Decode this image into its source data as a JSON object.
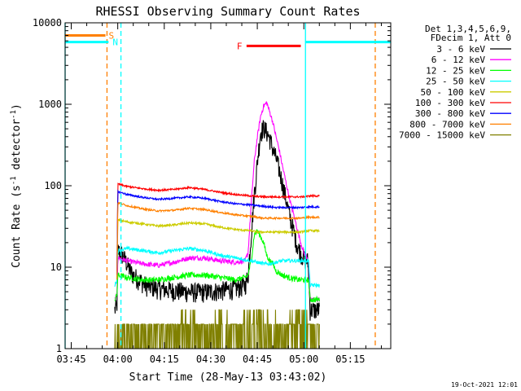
{
  "chart_data": {
    "type": "line",
    "title": "RHESSI Observing Summary Count Rates",
    "xlabel": "Start Time (28-May-13 03:43:02)",
    "ylabel": "Count Rate (s⁻¹ detector⁻¹)",
    "ylabel_parts": {
      "main": "Count Rate (s",
      "sup1": "-1",
      "mid": " detector",
      "sup2": "-1",
      "end": ")"
    },
    "yscale": "log",
    "x_unit": "minutes since 03:43:02",
    "xlim": [
      0,
      105
    ],
    "ylim": [
      1,
      10000
    ],
    "x_ticks": [
      {
        "label": "03:45",
        "value": 1.97
      },
      {
        "label": "04:00",
        "value": 16.97
      },
      {
        "label": "04:15",
        "value": 31.97
      },
      {
        "label": "04:30",
        "value": 46.97
      },
      {
        "label": "04:45",
        "value": 61.97
      },
      {
        "label": "05:00",
        "value": 76.97
      },
      {
        "label": "05:15",
        "value": 91.97
      }
    ],
    "y_ticks": [
      {
        "label": "1",
        "value": 1
      },
      {
        "label": "10",
        "value": 10
      },
      {
        "label": "100",
        "value": 100
      },
      {
        "label": "1000",
        "value": 1000
      },
      {
        "label": "10000",
        "value": 10000
      }
    ],
    "legend": {
      "header1": "Det 1,3,4,5,6,9,",
      "header2": "FDecim 1, Att 0",
      "placement": "right"
    },
    "series": [
      {
        "name": "3 - 6 keV",
        "color": "#000000",
        "noise": 0.28,
        "x": [
          16,
          16.7,
          17,
          18,
          19,
          20,
          21,
          22,
          24,
          26,
          30,
          35,
          40,
          45,
          50,
          55,
          58,
          59,
          60,
          61,
          61.5,
          62,
          62.5,
          63,
          64,
          65,
          66,
          67,
          68,
          69,
          70,
          71,
          72,
          73,
          74,
          75,
          76,
          77,
          78.2,
          78.5,
          79,
          80,
          81,
          82
        ],
        "y": [
          3,
          3.2,
          16,
          15,
          13,
          11,
          9,
          8,
          7,
          6,
          5.5,
          5.2,
          5,
          5,
          5.2,
          5.5,
          6,
          8,
          25,
          80,
          120,
          200,
          300,
          450,
          520,
          460,
          380,
          280,
          220,
          160,
          110,
          75,
          50,
          35,
          25,
          18,
          15,
          13,
          12,
          9,
          3,
          3,
          3,
          3
        ]
      },
      {
        "name": "6 - 12 keV",
        "color": "#ff00ff",
        "noise": 0.07,
        "x": [
          16,
          16.7,
          17,
          20,
          25,
          30,
          35,
          40,
          45,
          50,
          55,
          58,
          59,
          60,
          61,
          62,
          63,
          64,
          65,
          66,
          67,
          68,
          69,
          70,
          71,
          72,
          73,
          74,
          75,
          76,
          77,
          78.2,
          78.5,
          79,
          80,
          82
        ],
        "y": [
          4,
          4.5,
          13,
          12,
          11,
          10.5,
          11.5,
          13,
          13,
          12,
          11.5,
          12,
          15,
          60,
          200,
          400,
          700,
          950,
          1050,
          800,
          600,
          400,
          280,
          180,
          120,
          80,
          55,
          40,
          28,
          20,
          15,
          13,
          12,
          4,
          4,
          4
        ]
      },
      {
        "name": "12 - 25 keV",
        "color": "#00ff00",
        "noise": 0.08,
        "x": [
          16,
          16.7,
          17,
          20,
          25,
          30,
          35,
          40,
          45,
          50,
          55,
          58,
          59,
          60,
          61,
          62,
          63,
          64,
          65,
          66,
          67,
          68,
          70,
          72,
          75,
          78.2,
          78.5,
          79,
          80,
          82
        ],
        "y": [
          4,
          4.5,
          8,
          7.5,
          7,
          7,
          7.5,
          8,
          8,
          7.5,
          7,
          7.5,
          8,
          12,
          25,
          28,
          24,
          20,
          14,
          12,
          11,
          9,
          8,
          7.5,
          7,
          7,
          7,
          4,
          4,
          4
        ]
      },
      {
        "name": "25 - 50 keV",
        "color": "#00ffff",
        "noise": 0.05,
        "x": [
          16,
          16.7,
          17,
          20,
          25,
          30,
          35,
          40,
          45,
          50,
          55,
          60,
          62,
          64,
          66,
          68,
          70,
          72,
          74,
          76,
          78.2,
          78.5,
          79,
          80,
          82
        ],
        "y": [
          6,
          7,
          16,
          17,
          16,
          15,
          16,
          17,
          16,
          14,
          13,
          12,
          11.5,
          11,
          11,
          11.5,
          12,
          12,
          12,
          12,
          12,
          12,
          6,
          6,
          6
        ]
      },
      {
        "name": "50 - 100 keV",
        "color": "#cccc00",
        "noise": 0.03,
        "x": [
          16.7,
          17,
          20,
          25,
          30,
          35,
          40,
          45,
          50,
          55,
          60,
          62,
          64,
          66,
          68,
          70,
          72,
          74,
          76,
          78.2,
          78.5,
          80,
          82
        ],
        "y": [
          7,
          38,
          36,
          34,
          32,
          33,
          35,
          34,
          31,
          29,
          28,
          27,
          27,
          27,
          27,
          27,
          27,
          27,
          27,
          28,
          28,
          28,
          28
        ]
      },
      {
        "name": "100 - 300 keV",
        "color": "#ff0000",
        "noise": 0.025,
        "x": [
          16.7,
          17,
          20,
          25,
          30,
          35,
          40,
          45,
          50,
          55,
          60,
          62,
          64,
          66,
          68,
          70,
          72,
          74,
          76,
          78.2,
          78.5,
          80,
          82
        ],
        "y": [
          9,
          105,
          98,
          92,
          88,
          90,
          95,
          90,
          83,
          78,
          75,
          74,
          73,
          73,
          73,
          73,
          73,
          73,
          73,
          74,
          75,
          75,
          75
        ]
      },
      {
        "name": "300 - 800 keV",
        "color": "#0000ff",
        "noise": 0.025,
        "x": [
          16.7,
          17,
          20,
          25,
          30,
          35,
          40,
          45,
          50,
          55,
          60,
          62,
          64,
          66,
          68,
          70,
          72,
          74,
          76,
          78.2,
          78.5,
          80,
          82
        ],
        "y": [
          8,
          85,
          78,
          72,
          68,
          70,
          73,
          70,
          64,
          60,
          58,
          57,
          56,
          55,
          54,
          54,
          54,
          54,
          54,
          55,
          55,
          55,
          55
        ]
      },
      {
        "name": "800 - 7000 keV",
        "color": "#ff8000",
        "noise": 0.025,
        "x": [
          16.7,
          17,
          20,
          25,
          30,
          35,
          40,
          45,
          50,
          55,
          60,
          62,
          64,
          66,
          68,
          70,
          72,
          74,
          76,
          78.2,
          78.5,
          80,
          82
        ],
        "y": [
          7,
          62,
          57,
          52,
          49,
          50,
          53,
          51,
          47,
          44,
          42,
          41,
          40,
          40,
          40,
          40,
          40,
          40,
          40,
          41,
          41,
          41,
          41
        ]
      },
      {
        "name": "7000 - 15000 keV",
        "color": "#808000",
        "noise": 0,
        "x": [
          16,
          17,
          20,
          25,
          30,
          35,
          40,
          45,
          50,
          55,
          60,
          65,
          70,
          75,
          78.2,
          78.5,
          80,
          82
        ],
        "y": [
          1.5,
          2,
          1.8,
          2,
          2.5,
          2,
          1.5,
          2,
          1.5,
          2,
          1.5,
          1.5,
          2,
          1.5,
          1.5,
          2,
          2,
          2
        ]
      }
    ],
    "annotations": {
      "saa_label": "S",
      "night_label": "N",
      "flare_label": "F",
      "saa_segment": {
        "x": [
          0,
          13
        ],
        "y": 7000,
        "color": "#ff8000"
      },
      "night_segments": [
        {
          "x": [
            0,
            14
          ],
          "y": 5800
        },
        {
          "x": [
            77.5,
            105
          ],
          "y": 5800
        }
      ],
      "night_color": "#00ffff",
      "flare_segment": {
        "x": [
          58.5,
          76
        ],
        "y": 5200,
        "color": "#ff0000"
      },
      "saa_vlines": [
        13.5,
        100
      ],
      "night_vlines_dashed": [
        18
      ],
      "night_vlines_solid": [
        0,
        77.5
      ]
    }
  },
  "footer": {
    "date": "19-Oct-2021 12:01"
  }
}
